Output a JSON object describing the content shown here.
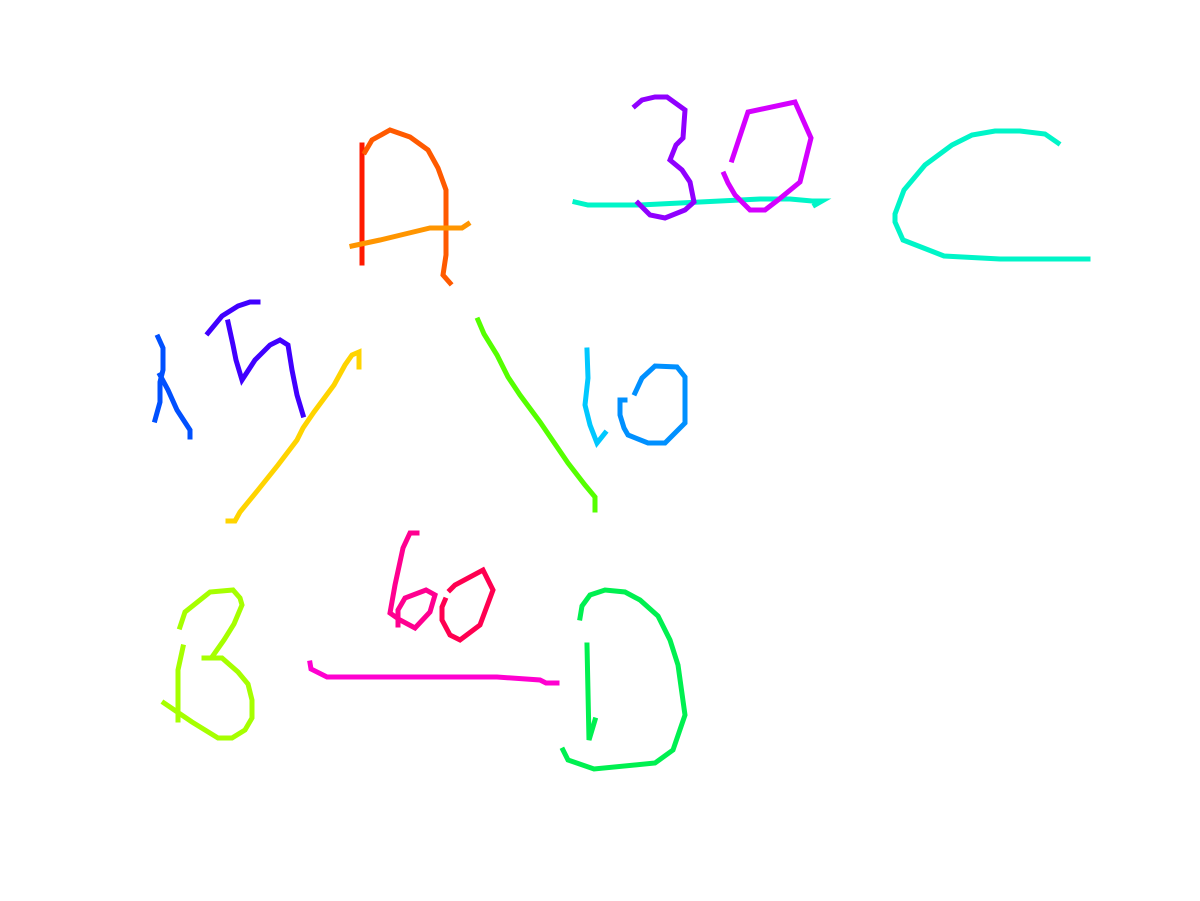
{
  "graph": {
    "nodes": [
      {
        "id": "A",
        "label": "A"
      },
      {
        "id": "B",
        "label": "B"
      },
      {
        "id": "C",
        "label": "C"
      },
      {
        "id": "D",
        "label": "D"
      }
    ],
    "edges": [
      {
        "from": "A",
        "to": "C",
        "weight": "30"
      },
      {
        "from": "A",
        "to": "B",
        "weight": "15"
      },
      {
        "from": "A",
        "to": "D",
        "weight": "10"
      },
      {
        "from": "B",
        "to": "D",
        "weight": "60"
      }
    ]
  },
  "colors": {
    "A_stem": "#ff1a00",
    "A_arc": "#ff5a00",
    "A_bar": "#ff9500",
    "C_letter": "#00f5c8",
    "B_letter": "#a6ff00",
    "D_letter": "#00f050",
    "edge_AC": "#00f5c8",
    "edge_AB": "#ffd400",
    "edge_AD": "#55ff00",
    "edge_BD": "#ff00d0",
    "w30_three": "#9000ff",
    "w30_zero": "#d400ff",
    "w15_one": "#0050ff",
    "w15_five": "#4000ff",
    "w10_one": "#00c8ff",
    "w10_zero": "#0090ff",
    "w60_six": "#ff0090",
    "w60_zero": "#ff0050"
  }
}
